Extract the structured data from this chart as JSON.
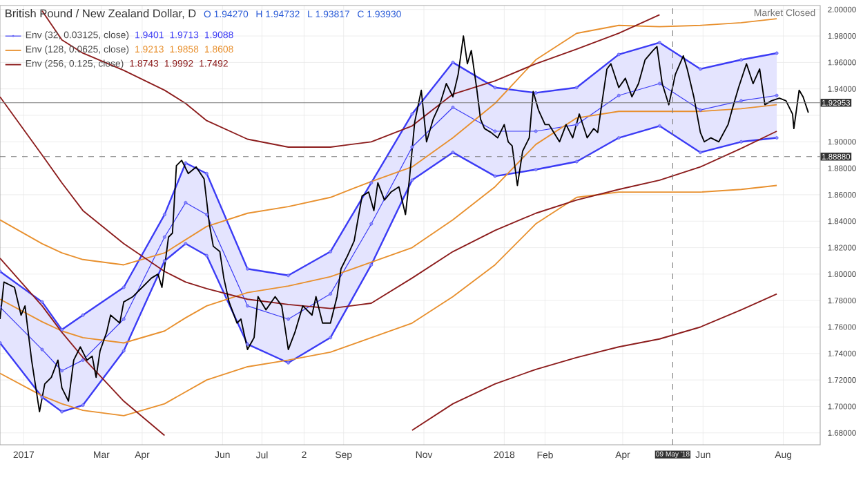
{
  "chart_data": {
    "type": "line",
    "title": "British Pound / New Zealand Dollar, D",
    "annotations": [
      "O 1.94270",
      "H 1.94732",
      "L 1.93817",
      "C 1.93930",
      "1.9401",
      "1.9713",
      "1.9088",
      "1.9213",
      "1.9858",
      "1.8608",
      "1.8743",
      "1.9992",
      "1.7492",
      "Market Closed"
    ],
    "xlim": [
      "2016-12-14",
      "2018-08-29"
    ],
    "ylim": [
      1.671,
      2.003
    ],
    "xticks": [
      {
        "value": "2017-01-01",
        "label": "2017"
      },
      {
        "value": "2017-03-01",
        "label": "Mar"
      },
      {
        "value": "2017-04-01",
        "label": "Apr"
      },
      {
        "value": "2017-06-01",
        "label": "Jun"
      },
      {
        "value": "2017-07-01",
        "label": "Jul"
      },
      {
        "value": "2017-08-02",
        "label": "2"
      },
      {
        "value": "2017-09-01",
        "label": "Sep"
      },
      {
        "value": "2017-11-01",
        "label": "Nov"
      },
      {
        "value": "2018-01-01",
        "label": "2018"
      },
      {
        "value": "2018-02-01",
        "label": "Feb"
      },
      {
        "value": "2018-04-01",
        "label": "Apr"
      },
      {
        "value": "2018-06-01",
        "label": "Jun"
      },
      {
        "value": "2018-08-01",
        "label": "Aug"
      }
    ],
    "yticks": [
      {
        "value": 1.68,
        "label": "1.68000"
      },
      {
        "value": 1.7,
        "label": "1.70000"
      },
      {
        "value": 1.72,
        "label": "1.72000"
      },
      {
        "value": 1.74,
        "label": "1.74000"
      },
      {
        "value": 1.76,
        "label": "1.76000"
      },
      {
        "value": 1.78,
        "label": "1.78000"
      },
      {
        "value": 1.8,
        "label": "1.80000"
      },
      {
        "value": 1.82,
        "label": "1.82000"
      },
      {
        "value": 1.84,
        "label": "1.84000"
      },
      {
        "value": 1.86,
        "label": "1.86000"
      },
      {
        "value": 1.88,
        "label": "1.88000"
      },
      {
        "value": 1.9,
        "label": "1.90000"
      },
      {
        "value": 1.92,
        "label": null
      },
      {
        "value": 1.94,
        "label": "1.94000"
      },
      {
        "value": 1.96,
        "label": "1.96000"
      },
      {
        "value": 1.98,
        "label": "1.98000"
      },
      {
        "value": 2.0,
        "label": "2.00000"
      }
    ],
    "grid": true,
    "legend": "top left",
    "ref_lines": [
      {
        "axis": "y",
        "value": 1.92953,
        "label": "1.92953",
        "color": "#7a7a7a",
        "line_style": "solid"
      },
      {
        "axis": "y",
        "value": 1.8888,
        "label": "1.88880",
        "color": "#7a7a7a",
        "line_style": "dashed"
      },
      {
        "axis": "x",
        "value": "2018-05-09",
        "label": "09 May '18",
        "color": "#7a7a7a",
        "line_style": "dashed"
      }
    ],
    "series": [
      {
        "name": "Env (32, 0.03125, close)",
        "color": "#3b3bf5",
        "marker": "circle",
        "x": [
          "2016-12-14",
          "2017-01-15",
          "2017-01-30",
          "2017-02-15",
          "2017-03-18",
          "2017-04-18",
          "2017-05-04",
          "2017-05-20",
          "2017-06-20",
          "2017-07-21",
          "2017-08-22",
          "2017-09-22",
          "2017-10-23",
          "2017-11-23",
          "2017-12-25",
          "2018-01-25",
          "2018-02-25",
          "2018-03-29",
          "2018-04-29",
          "2018-05-30",
          "2018-06-30",
          "2018-07-27"
        ],
        "values": [
          1.775,
          1.743,
          1.727,
          1.735,
          1.766,
          1.828,
          1.854,
          1.845,
          1.776,
          1.766,
          1.785,
          1.838,
          1.896,
          1.926,
          1.908,
          1.908,
          1.913,
          1.935,
          1.944,
          1.924,
          1.931,
          1.935
        ],
        "lower": [
          1.748,
          1.707,
          1.696,
          1.701,
          1.742,
          1.81,
          1.823,
          1.814,
          1.747,
          1.733,
          1.752,
          1.807,
          1.871,
          1.892,
          1.874,
          1.879,
          1.885,
          1.903,
          1.912,
          1.892,
          1.9,
          1.903
        ],
        "upper": [
          1.802,
          1.779,
          1.758,
          1.769,
          1.79,
          1.845,
          1.884,
          1.876,
          1.804,
          1.799,
          1.817,
          1.869,
          1.921,
          1.96,
          1.941,
          1.937,
          1.941,
          1.966,
          1.975,
          1.955,
          1.962,
          1.967
        ]
      },
      {
        "color": "#3b3bf5",
        "marker": "circle",
        "x": [
          "2016-12-14",
          "2017-01-15",
          "2017-01-30",
          "2017-02-15",
          "2017-03-18",
          "2017-04-18",
          "2017-05-04",
          "2017-05-20",
          "2017-06-20",
          "2017-07-21",
          "2017-08-22",
          "2017-09-22",
          "2017-10-23",
          "2017-11-23",
          "2017-12-25",
          "2018-01-25",
          "2018-02-25",
          "2018-03-29",
          "2018-04-29",
          "2018-05-30",
          "2018-06-30",
          "2018-07-27"
        ],
        "values": [
          1.802,
          1.779,
          1.758,
          1.769,
          1.79,
          1.845,
          1.884,
          1.876,
          1.804,
          1.799,
          1.817,
          1.869,
          1.921,
          1.96,
          1.941,
          1.937,
          1.941,
          1.966,
          1.975,
          1.955,
          1.962,
          1.967
        ]
      },
      {
        "color": "#3b3bf5",
        "marker": "circle",
        "x": [
          "2016-12-14",
          "2017-01-15",
          "2017-01-30",
          "2017-02-15",
          "2017-03-18",
          "2017-04-18",
          "2017-05-04",
          "2017-05-20",
          "2017-06-20",
          "2017-07-21",
          "2017-08-22",
          "2017-09-22",
          "2017-10-23",
          "2017-11-23",
          "2017-12-25",
          "2018-01-25",
          "2018-02-25",
          "2018-03-29",
          "2018-04-29",
          "2018-05-30",
          "2018-06-30",
          "2018-07-27"
        ],
        "values": [
          1.748,
          1.707,
          1.696,
          1.701,
          1.742,
          1.81,
          1.823,
          1.814,
          1.747,
          1.733,
          1.752,
          1.807,
          1.871,
          1.892,
          1.874,
          1.879,
          1.885,
          1.903,
          1.912,
          1.892,
          1.9,
          1.903
        ]
      },
      {
        "name": "Env (128, 0.0625, close)",
        "color": "#e8902e",
        "x": [
          "2016-12-14",
          "2017-01-15",
          "2017-01-30",
          "2017-02-15",
          "2017-03-18",
          "2017-04-18",
          "2017-05-04",
          "2017-05-20",
          "2017-06-20",
          "2017-07-21",
          "2017-08-22",
          "2017-09-22",
          "2017-10-23",
          "2017-11-23",
          "2017-12-25",
          "2018-01-25",
          "2018-02-25",
          "2018-03-29",
          "2018-04-29",
          "2018-05-30",
          "2018-06-30",
          "2018-07-27"
        ],
        "values": [
          1.781,
          1.764,
          1.757,
          1.752,
          1.748,
          1.757,
          1.767,
          1.776,
          1.786,
          1.791,
          1.798,
          1.809,
          1.82,
          1.841,
          1.866,
          1.898,
          1.918,
          1.923,
          1.923,
          1.923,
          1.925,
          1.928
        ]
      },
      {
        "color": "#e8902e",
        "x": [
          "2016-12-14",
          "2017-01-15",
          "2017-01-30",
          "2017-02-15",
          "2017-03-18",
          "2017-04-18",
          "2017-05-04",
          "2017-05-20",
          "2017-06-20",
          "2017-07-21",
          "2017-08-22",
          "2017-09-22",
          "2017-10-23",
          "2017-11-23",
          "2017-12-25",
          "2018-01-25",
          "2018-02-25",
          "2018-03-29",
          "2018-04-29",
          "2018-05-30",
          "2018-06-30",
          "2018-07-27"
        ],
        "values": [
          1.841,
          1.823,
          1.816,
          1.811,
          1.807,
          1.816,
          1.826,
          1.836,
          1.846,
          1.851,
          1.858,
          1.87,
          1.881,
          1.903,
          1.929,
          1.962,
          1.982,
          1.988,
          1.987,
          1.988,
          1.99,
          1.993
        ]
      },
      {
        "color": "#e8902e",
        "x": [
          "2016-12-14",
          "2017-01-15",
          "2017-01-30",
          "2017-02-15",
          "2017-03-18",
          "2017-04-18",
          "2017-05-04",
          "2017-05-20",
          "2017-06-20",
          "2017-07-21",
          "2017-08-22",
          "2017-09-22",
          "2017-10-23",
          "2017-11-23",
          "2017-12-25",
          "2018-01-25",
          "2018-02-25",
          "2018-03-29",
          "2018-04-29",
          "2018-05-30",
          "2018-06-30",
          "2018-07-27"
        ],
        "values": [
          1.725,
          1.708,
          1.702,
          1.697,
          1.693,
          1.702,
          1.711,
          1.72,
          1.73,
          1.735,
          1.741,
          1.752,
          1.763,
          1.783,
          1.807,
          1.838,
          1.858,
          1.862,
          1.862,
          1.862,
          1.864,
          1.867
        ]
      },
      {
        "name": "Env (256, 0.125, close)",
        "color": "#8c1c1c",
        "x": [
          "2016-12-14",
          "2017-01-15",
          "2017-01-30",
          "2017-02-15",
          "2017-03-18",
          "2017-04-18",
          "2017-05-04",
          "2017-05-20",
          "2017-06-20",
          "2017-07-21",
          "2017-08-22",
          "2017-09-22",
          "2017-10-23",
          "2017-11-23",
          "2017-12-25",
          "2018-01-25",
          "2018-02-25",
          "2018-03-29",
          "2018-04-29",
          "2018-05-30",
          "2018-06-30",
          "2018-07-27"
        ],
        "values": [
          1.934,
          1.89,
          1.869,
          1.848,
          1.823,
          1.802,
          1.794,
          1.789,
          1.781,
          1.777,
          1.774,
          1.778,
          1.797,
          1.817,
          1.833,
          1.846,
          1.856,
          1.864,
          1.871,
          1.881,
          1.895,
          1.908
        ]
      },
      {
        "color": "#8c1c1c",
        "x": [
          "2017-01-15",
          "2017-01-30",
          "2017-02-15",
          "2017-03-18",
          "2017-04-18",
          "2017-05-04",
          "2017-05-20",
          "2017-06-20",
          "2017-07-21",
          "2017-08-22",
          "2017-09-22",
          "2017-10-23",
          "2017-11-23",
          "2017-12-25",
          "2018-01-25",
          "2018-02-25",
          "2018-03-29",
          "2018-04-29"
        ],
        "values": [
          1.999,
          1.977,
          1.967,
          1.954,
          1.939,
          1.929,
          1.916,
          1.902,
          1.896,
          1.896,
          1.9,
          1.912,
          1.936,
          1.946,
          1.959,
          1.97,
          1.982,
          1.996
        ]
      },
      {
        "color": "#8c1c1c",
        "x": [
          "2016-12-14",
          "2017-01-15",
          "2017-01-30",
          "2017-02-15",
          "2017-03-18",
          "2017-04-18",
          "2017-05-04",
          "2017-05-20",
          "2017-06-20",
          "2017-07-21",
          "2017-08-22",
          "2017-09-22",
          "2017-10-23",
          "2017-11-23",
          "2017-12-25",
          "2018-01-25",
          "2018-02-25",
          "2018-03-29",
          "2018-04-29",
          "2018-05-30",
          "2018-06-30",
          "2018-07-27"
        ],
        "values": [
          1.812,
          1.776,
          1.756,
          1.737,
          1.704,
          1.678,
          null,
          null,
          null,
          null,
          null,
          null,
          1.682,
          1.702,
          1.717,
          1.728,
          1.737,
          1.745,
          1.751,
          1.76,
          1.773,
          1.785
        ]
      },
      {
        "color": "#000000",
        "x": [
          "2016-12-14",
          "2016-12-17",
          "2016-12-25",
          "2016-12-30",
          "2017-01-02",
          "2017-01-07",
          "2017-01-13",
          "2017-01-17",
          "2017-01-22",
          "2017-01-27",
          "2017-01-30",
          "2017-02-04",
          "2017-02-08",
          "2017-02-13",
          "2017-02-18",
          "2017-02-22",
          "2017-02-25",
          "2017-02-28",
          "2017-03-05",
          "2017-03-08",
          "2017-03-15",
          "2017-03-18",
          "2017-03-25",
          "2017-04-01",
          "2017-04-08",
          "2017-04-13",
          "2017-04-16",
          "2017-04-21",
          "2017-04-24",
          "2017-04-27",
          "2017-05-01",
          "2017-05-06",
          "2017-05-12",
          "2017-05-18",
          "2017-05-22",
          "2017-05-25",
          "2017-05-30",
          "2017-06-02",
          "2017-06-06",
          "2017-06-12",
          "2017-06-15",
          "2017-06-20",
          "2017-06-25",
          "2017-06-28",
          "2017-07-04",
          "2017-07-11",
          "2017-07-16",
          "2017-07-21",
          "2017-07-26",
          "2017-08-01",
          "2017-08-08",
          "2017-08-11",
          "2017-08-16",
          "2017-08-22",
          "2017-08-27",
          "2017-08-30",
          "2017-09-04",
          "2017-09-09",
          "2017-09-15",
          "2017-09-20",
          "2017-09-24",
          "2017-09-27",
          "2017-10-02",
          "2017-10-07",
          "2017-10-13",
          "2017-10-18",
          "2017-10-21",
          "2017-10-25",
          "2017-10-30",
          "2017-11-03",
          "2017-11-08",
          "2017-11-13",
          "2017-11-18",
          "2017-11-23",
          "2017-11-27",
          "2017-12-01",
          "2017-12-04",
          "2017-12-07",
          "2017-12-11",
          "2017-12-14",
          "2017-12-17",
          "2017-12-22",
          "2017-12-27",
          "2018-01-01",
          "2018-01-04",
          "2018-01-07",
          "2018-01-11",
          "2018-01-15",
          "2018-01-20",
          "2018-01-23",
          "2018-01-27",
          "2018-02-01",
          "2018-02-04",
          "2018-02-12",
          "2018-02-17",
          "2018-02-22",
          "2018-02-27",
          "2018-03-05",
          "2018-03-10",
          "2018-03-13",
          "2018-03-16",
          "2018-03-20",
          "2018-03-23",
          "2018-03-29",
          "2018-04-03",
          "2018-04-08",
          "2018-04-13",
          "2018-04-18",
          "2018-04-24",
          "2018-04-27",
          "2018-05-01",
          "2018-05-06",
          "2018-05-11",
          "2018-05-17",
          "2018-05-20",
          "2018-05-25",
          "2018-05-30",
          "2018-06-02",
          "2018-06-07",
          "2018-06-13",
          "2018-06-20",
          "2018-06-23",
          "2018-06-28",
          "2018-07-04",
          "2018-07-09",
          "2018-07-14",
          "2018-07-18",
          "2018-07-23",
          "2018-07-29",
          "2018-08-03",
          "2018-08-08",
          "2018-08-09",
          "2018-08-13",
          "2018-08-16",
          "2018-08-20"
        ],
        "values": [
          1.766,
          1.794,
          1.79,
          1.769,
          1.776,
          1.735,
          1.696,
          1.717,
          1.722,
          1.735,
          1.714,
          1.704,
          1.735,
          1.745,
          1.735,
          1.738,
          1.722,
          1.742,
          1.756,
          1.769,
          1.763,
          1.779,
          1.783,
          1.79,
          1.797,
          1.8,
          1.79,
          1.828,
          1.831,
          1.882,
          1.886,
          1.876,
          1.881,
          1.872,
          1.838,
          1.821,
          1.817,
          1.797,
          1.779,
          1.763,
          1.766,
          1.743,
          1.752,
          1.783,
          1.773,
          1.783,
          1.776,
          1.743,
          1.756,
          1.776,
          1.769,
          1.783,
          1.763,
          1.763,
          1.783,
          1.804,
          1.814,
          1.825,
          1.859,
          1.862,
          1.848,
          1.869,
          1.856,
          1.862,
          1.866,
          1.845,
          1.872,
          1.915,
          1.939,
          1.9,
          1.917,
          1.928,
          1.944,
          1.934,
          1.951,
          1.98,
          1.959,
          1.969,
          1.941,
          1.917,
          1.91,
          1.907,
          1.903,
          1.913,
          1.9,
          1.897,
          1.867,
          1.893,
          1.903,
          1.938,
          1.924,
          1.913,
          1.913,
          1.9,
          1.913,
          1.903,
          1.921,
          1.903,
          1.91,
          1.907,
          1.928,
          1.955,
          1.959,
          1.941,
          1.948,
          1.934,
          1.944,
          1.962,
          1.969,
          1.972,
          1.944,
          1.928,
          1.951,
          1.965,
          1.955,
          1.934,
          1.907,
          1.9,
          1.903,
          1.9,
          1.913,
          1.924,
          1.941,
          1.959,
          1.944,
          1.955,
          1.928,
          1.931,
          1.933,
          1.931,
          1.921,
          1.91,
          1.939,
          1.934,
          1.922
        ]
      }
    ]
  }
}
